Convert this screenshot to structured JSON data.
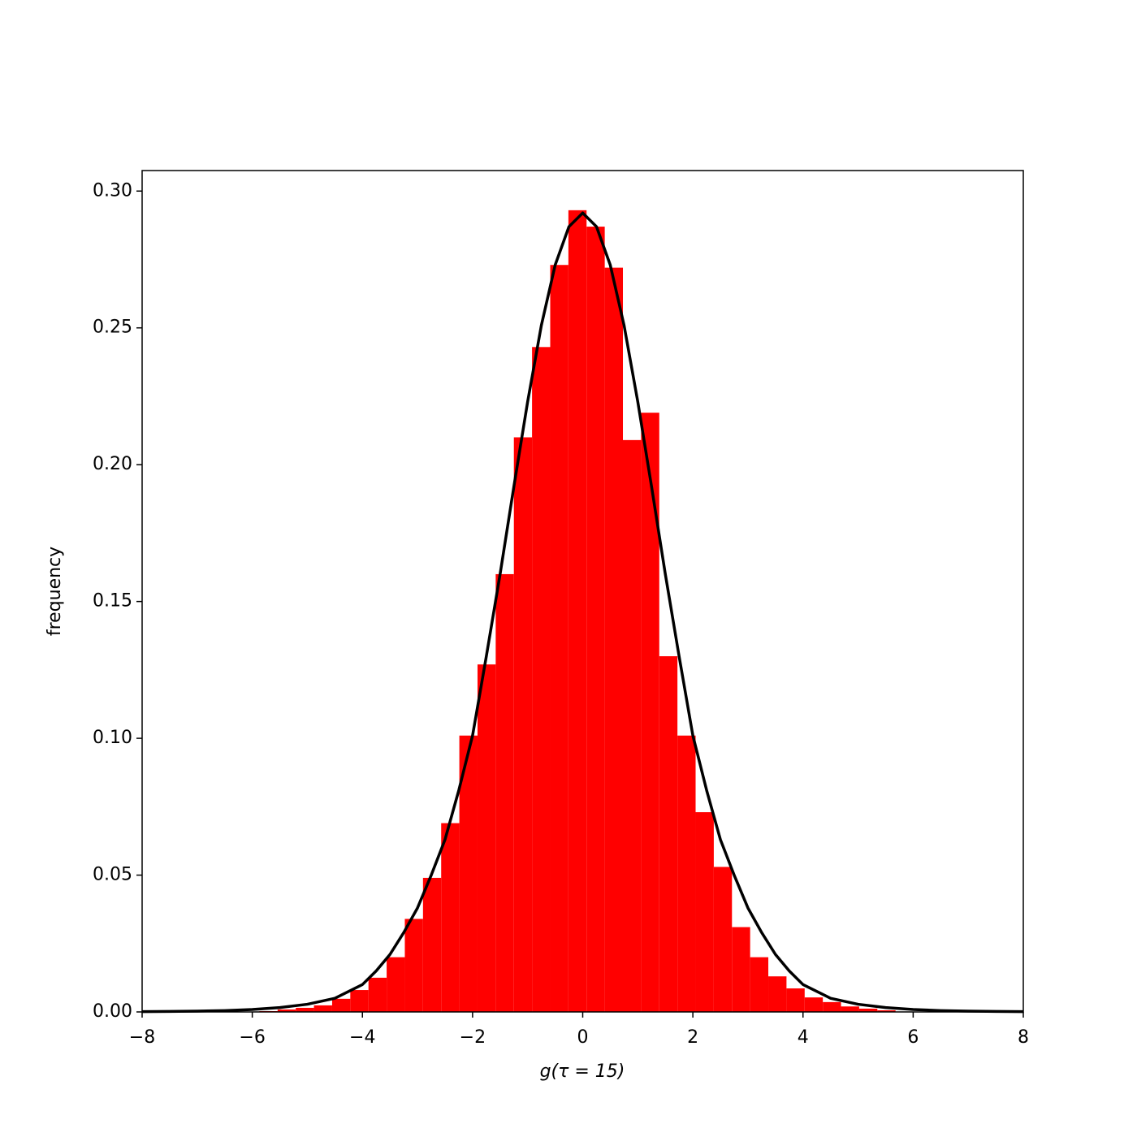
{
  "chart_data": {
    "type": "histogram",
    "xlabel": "g(τ = 15)",
    "ylabel": "frequency",
    "bins": [
      -5.87,
      -5.54,
      -5.21,
      -4.88,
      -4.55,
      -4.22,
      -3.89,
      -3.56,
      -3.23,
      -2.9,
      -2.57,
      -2.24,
      -1.91,
      -1.58,
      -1.25,
      -0.92,
      -0.59,
      -0.26,
      0.07,
      0.4,
      0.73,
      1.06,
      1.39,
      1.72,
      2.05,
      2.38,
      2.71,
      3.04,
      3.37,
      3.7,
      4.03,
      4.36,
      4.69,
      5.02,
      5.35,
      5.68
    ],
    "counts": [
      0.0003,
      0.0009,
      0.0015,
      0.0024,
      0.0048,
      0.008,
      0.0125,
      0.02,
      0.034,
      0.049,
      0.069,
      0.101,
      0.127,
      0.16,
      0.21,
      0.243,
      0.273,
      0.293,
      0.287,
      0.272,
      0.209,
      0.219,
      0.13,
      0.101,
      0.073,
      0.053,
      0.031,
      0.02,
      0.013,
      0.0086,
      0.0053,
      0.0036,
      0.002,
      0.0012,
      0.0006
    ],
    "color": "#ff0000",
    "curve": {
      "color": "#000000",
      "x": [
        -8,
        -7.5,
        -7,
        -6.5,
        -6,
        -5.5,
        -5,
        -4.5,
        -4,
        -3.75,
        -3.5,
        -3.25,
        -3,
        -2.75,
        -2.5,
        -2.25,
        -2,
        -1.75,
        -1.5,
        -1.25,
        -1,
        -0.75,
        -0.5,
        -0.25,
        0,
        0.25,
        0.5,
        0.75,
        1,
        1.25,
        1.5,
        1.75,
        2,
        2.25,
        2.5,
        2.75,
        3,
        3.25,
        3.5,
        3.75,
        4,
        4.5,
        5,
        5.5,
        6,
        6.5,
        7,
        7.5,
        8
      ],
      "values": [
        0.0001,
        0.0002,
        0.0003,
        0.0005,
        0.0009,
        0.0016,
        0.0028,
        0.005,
        0.01,
        0.015,
        0.021,
        0.029,
        0.038,
        0.05,
        0.063,
        0.081,
        0.101,
        0.13,
        0.16,
        0.192,
        0.223,
        0.251,
        0.273,
        0.287,
        0.292,
        0.287,
        0.273,
        0.251,
        0.223,
        0.192,
        0.16,
        0.13,
        0.101,
        0.081,
        0.063,
        0.05,
        0.038,
        0.029,
        0.021,
        0.015,
        0.01,
        0.005,
        0.0028,
        0.0016,
        0.0009,
        0.0005,
        0.0003,
        0.0002,
        0.0001
      ]
    },
    "xlim": [
      -8,
      8
    ],
    "xticks": [
      {
        "value": -8,
        "label": "−8"
      },
      {
        "value": -6,
        "label": "−6"
      },
      {
        "value": -4,
        "label": "−4"
      },
      {
        "value": -2,
        "label": "−2"
      },
      0,
      2,
      4,
      6,
      8
    ],
    "ylim": [
      0,
      0.3075
    ],
    "yticks": [
      {
        "value": 0,
        "label": "0.00"
      },
      0.05,
      {
        "value": 0.1,
        "label": "0.10"
      },
      0.15,
      {
        "value": 0.2,
        "label": "0.20"
      },
      0.25,
      {
        "value": 0.3,
        "label": "0.30"
      }
    ]
  }
}
